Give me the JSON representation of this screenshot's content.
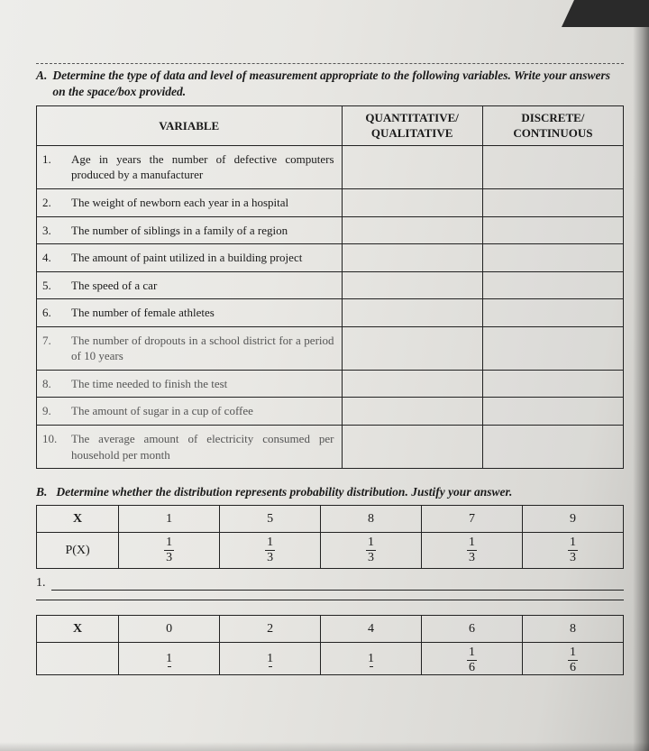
{
  "sectionA": {
    "marker": "A.",
    "instruction": "Determine the type of data and level of measurement appropriate to the following variables. Write your answers on the space/box provided.",
    "headers": {
      "variable": "VARIABLE",
      "qq": "QUANTITATIVE/ QUALITATIVE",
      "dc": "DISCRETE/ CONTINUOUS"
    },
    "rows": [
      {
        "n": "1.",
        "text": "Age in years the number of defective computers produced by a manufacturer"
      },
      {
        "n": "2.",
        "text": "The weight of newborn each year in a hospital"
      },
      {
        "n": "3.",
        "text": "The number of siblings in a family of a region"
      },
      {
        "n": "4.",
        "text": "The amount of paint utilized in a building project"
      },
      {
        "n": "5.",
        "text": "The speed of a car"
      },
      {
        "n": "6.",
        "text": "The number of female athletes"
      },
      {
        "n": "7.",
        "text": "The number of dropouts in a school district for a period of 10 years"
      },
      {
        "n": "8.",
        "text": "The time needed to finish the test"
      },
      {
        "n": "9.",
        "text": "The amount of sugar in a cup of coffee"
      },
      {
        "n": "10.",
        "text": "The average amount of electricity consumed per household per month"
      }
    ]
  },
  "sectionB": {
    "marker": "B.",
    "instruction": "Determine whether the distribution represents probability distribution.  Justify your answer.",
    "table1": {
      "xLabel": "X",
      "pLabel": "P(X)",
      "x": [
        "1",
        "5",
        "8",
        "7",
        "9"
      ],
      "p": [
        {
          "n": "1",
          "d": "3"
        },
        {
          "n": "1",
          "d": "3"
        },
        {
          "n": "1",
          "d": "3"
        },
        {
          "n": "1",
          "d": "3"
        },
        {
          "n": "1",
          "d": "3"
        }
      ]
    },
    "answer1Num": "1.",
    "table2": {
      "xLabel": "X",
      "x": [
        "0",
        "2",
        "4",
        "6",
        "8"
      ],
      "p": [
        {
          "n": "1",
          "d": ""
        },
        {
          "n": "1",
          "d": ""
        },
        {
          "n": "1",
          "d": ""
        },
        {
          "n": "1",
          "d": "6"
        },
        {
          "n": "1",
          "d": "6"
        }
      ]
    }
  },
  "style": {
    "border_color": "#222222",
    "bg_gradient": [
      "#ededea",
      "#d9d8d4"
    ],
    "font_family": "Times New Roman",
    "base_fontsize": 13
  }
}
